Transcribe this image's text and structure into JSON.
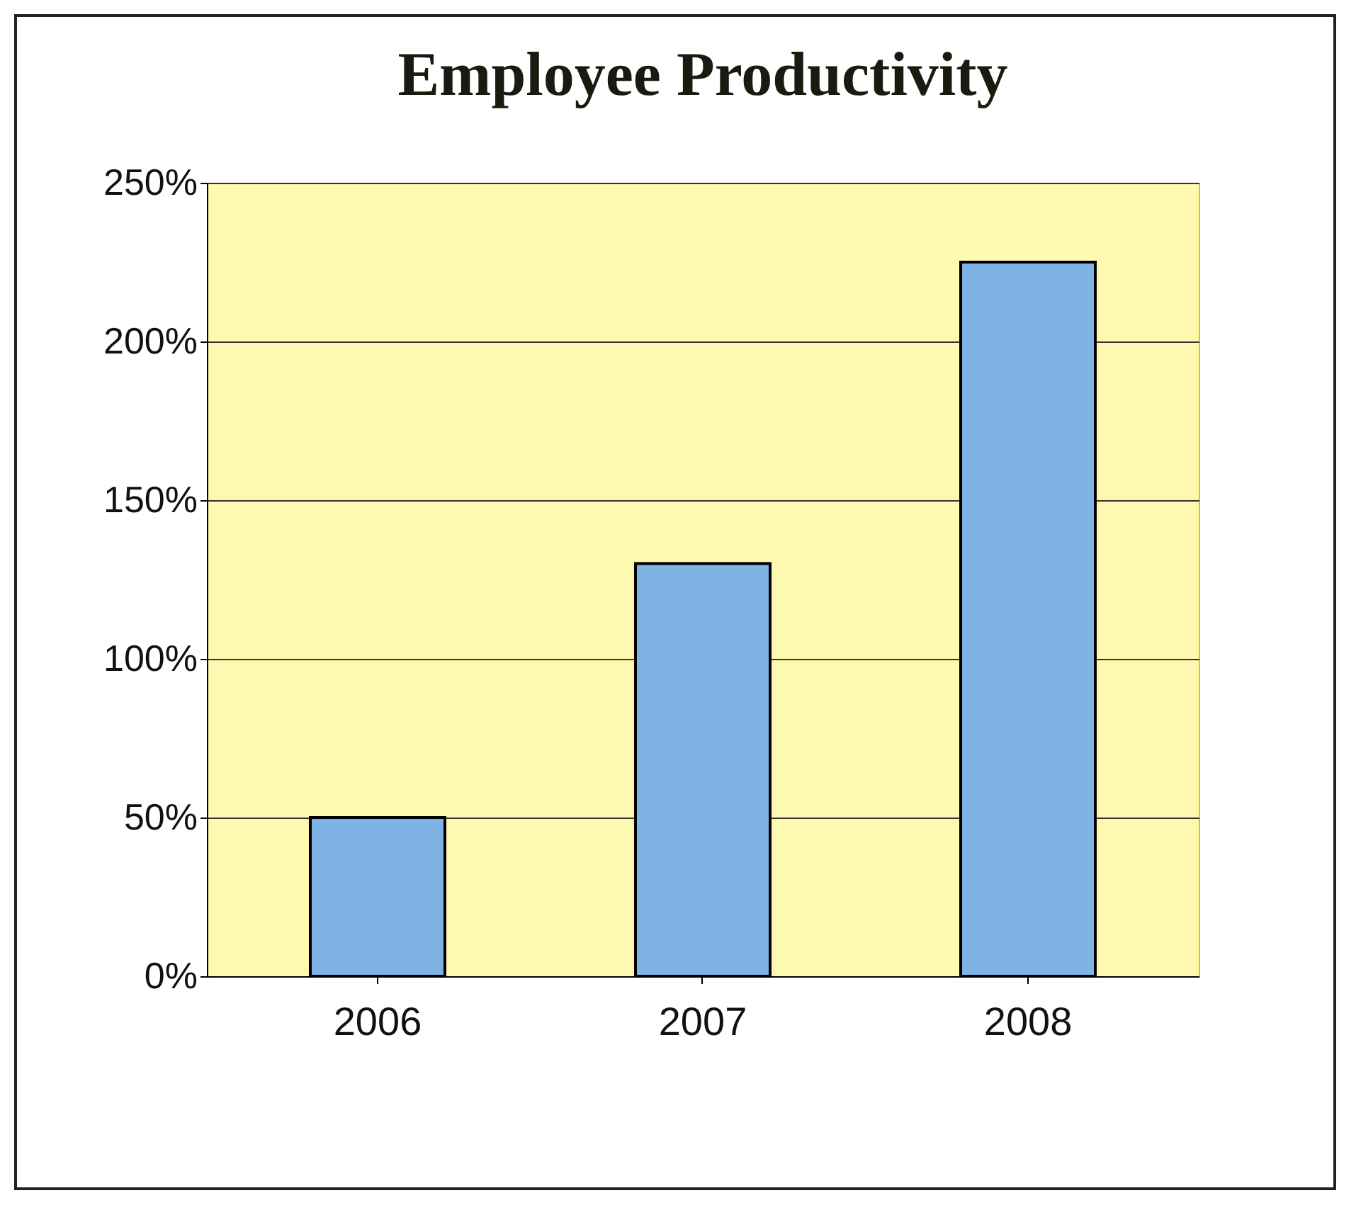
{
  "chart_data": {
    "type": "bar",
    "title": "Employee Productivity",
    "categories": [
      "2006",
      "2007",
      "2008"
    ],
    "values": [
      50,
      130,
      225
    ],
    "color": "#7fb2e5",
    "ylim": [
      0,
      250
    ],
    "yticks": [
      {
        "value": 0,
        "label": "0%"
      },
      {
        "value": 50,
        "label": "50%"
      },
      {
        "value": 100,
        "label": "100%"
      },
      {
        "value": 150,
        "label": "150%"
      },
      {
        "value": 200,
        "label": "200%"
      },
      {
        "value": 250,
        "label": "250%"
      }
    ],
    "grid": "y"
  }
}
